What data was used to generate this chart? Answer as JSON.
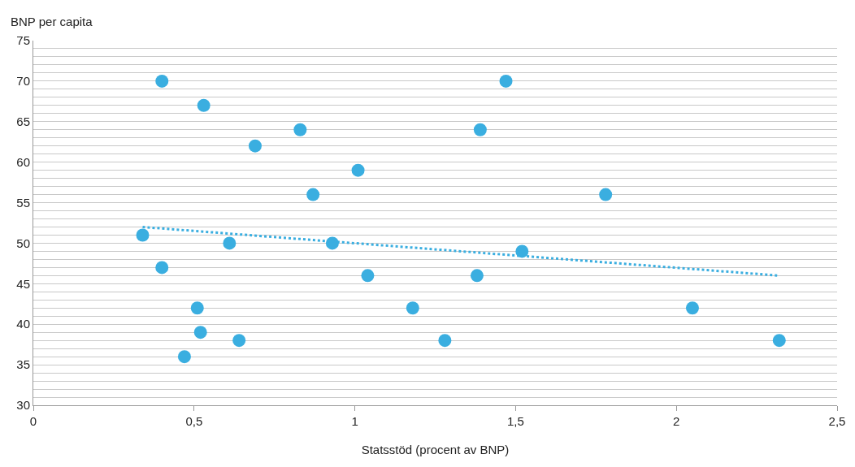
{
  "chart_data": {
    "type": "scatter",
    "xlabel": "Statsstöd (procent av BNP)",
    "ylabel": "BNP per capita",
    "xlim": [
      0,
      2.5
    ],
    "xticks": [
      0,
      {
        "value": 0.5,
        "label": "0,5"
      },
      1,
      {
        "value": 1.5,
        "label": "1,5"
      },
      2,
      {
        "value": 2.5,
        "label": "2,5"
      }
    ],
    "ylim": [
      30,
      75
    ],
    "yticks": [
      30,
      {
        "value": 31,
        "label": null
      },
      {
        "value": 32,
        "label": null
      },
      {
        "value": 33,
        "label": null
      },
      {
        "value": 34,
        "label": null
      },
      35,
      {
        "value": 36,
        "label": null
      },
      {
        "value": 37,
        "label": null
      },
      {
        "value": 38,
        "label": null
      },
      {
        "value": 39,
        "label": null
      },
      40,
      {
        "value": 41,
        "label": null
      },
      {
        "value": 42,
        "label": null
      },
      {
        "value": 43,
        "label": null
      },
      {
        "value": 44,
        "label": null
      },
      45,
      {
        "value": 46,
        "label": null
      },
      {
        "value": 47,
        "label": null
      },
      {
        "value": 48,
        "label": null
      },
      {
        "value": 49,
        "label": null
      },
      50,
      {
        "value": 51,
        "label": null
      },
      {
        "value": 52,
        "label": null
      },
      {
        "value": 53,
        "label": null
      },
      {
        "value": 54,
        "label": null
      },
      55,
      {
        "value": 56,
        "label": null
      },
      {
        "value": 57,
        "label": null
      },
      {
        "value": 58,
        "label": null
      },
      {
        "value": 59,
        "label": null
      },
      60,
      {
        "value": 61,
        "label": null
      },
      {
        "value": 62,
        "label": null
      },
      {
        "value": 63,
        "label": null
      },
      {
        "value": 64,
        "label": null
      },
      65,
      {
        "value": 66,
        "label": null
      },
      {
        "value": 67,
        "label": null
      },
      {
        "value": 68,
        "label": null
      },
      {
        "value": 69,
        "label": null
      },
      70,
      {
        "value": 71,
        "label": null
      },
      {
        "value": 72,
        "label": null
      },
      {
        "value": 73,
        "label": null
      },
      {
        "value": 74,
        "label": null
      },
      75
    ],
    "grid": "y",
    "marker": "circle",
    "series": [
      {
        "color": "#3aaee0",
        "x": [
          0.4,
          0.53,
          0.83,
          1.39,
          1.47,
          0.69,
          1.01,
          0.87,
          1.78,
          0.34,
          0.61,
          0.93,
          1.52,
          0.4,
          1.04,
          1.38,
          0.51,
          1.18,
          2.05,
          0.52,
          0.64,
          1.28,
          2.32,
          0.47
        ],
        "values": [
          70,
          67,
          64,
          64,
          70,
          62,
          59,
          56,
          56,
          51,
          50,
          50,
          49,
          47,
          46,
          46,
          42,
          42,
          42,
          39,
          38,
          38,
          38,
          36
        ]
      },
      {
        "type": "line",
        "color": "#3aaee0",
        "line_style": "dotted",
        "marker": "none",
        "x": [
          0.34,
          2.32
        ],
        "values": [
          52,
          46
        ]
      }
    ]
  }
}
